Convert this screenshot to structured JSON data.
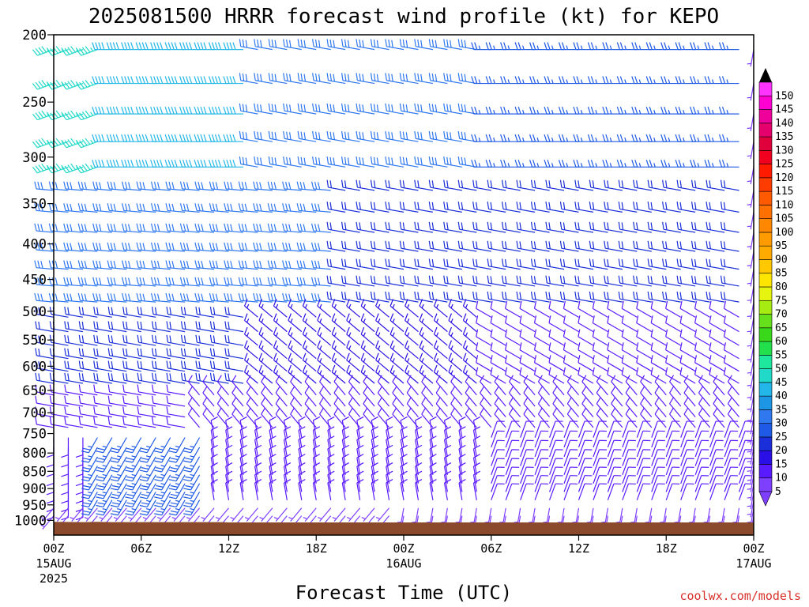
{
  "chart_data": {
    "type": "wind-barb-profile",
    "title": "2025081500 HRRR forecast wind profile (kt) for KEPO",
    "xlabel": "Forecast Time (UTC)",
    "credit": "coolwx.com/models",
    "pressure_levels": [
      200,
      250,
      300,
      350,
      400,
      450,
      500,
      550,
      600,
      650,
      700,
      750,
      800,
      850,
      900,
      950,
      1000
    ],
    "y_tick_labels": [
      "200",
      "250",
      "300",
      "350",
      "400",
      "450",
      "500",
      "550",
      "600",
      "650",
      "700",
      "750",
      "800",
      "850",
      "900",
      "950",
      "1000"
    ],
    "x_range_hours": [
      0,
      48
    ],
    "x_ticks": [
      {
        "hour": 0,
        "label": "00Z",
        "sub": "15AUG",
        "sub2": "2025"
      },
      {
        "hour": 6,
        "label": "06Z",
        "sub": "",
        "sub2": ""
      },
      {
        "hour": 12,
        "label": "12Z",
        "sub": "",
        "sub2": ""
      },
      {
        "hour": 18,
        "label": "18Z",
        "sub": "",
        "sub2": ""
      },
      {
        "hour": 24,
        "label": "00Z",
        "sub": "16AUG",
        "sub2": ""
      },
      {
        "hour": 30,
        "label": "06Z",
        "sub": "",
        "sub2": ""
      },
      {
        "hour": 36,
        "label": "12Z",
        "sub": "",
        "sub2": ""
      },
      {
        "hour": 42,
        "label": "18Z",
        "sub": "",
        "sub2": ""
      },
      {
        "hour": 48,
        "label": "00Z",
        "sub": "17AUG",
        "sub2": ""
      }
    ],
    "colorbar": {
      "ticks": [
        5,
        10,
        15,
        20,
        25,
        30,
        35,
        40,
        45,
        50,
        55,
        60,
        65,
        70,
        75,
        80,
        85,
        90,
        95,
        100,
        105,
        110,
        115,
        120,
        125,
        130,
        135,
        140,
        145,
        150
      ],
      "colors": [
        "#7f3fff",
        "#5a1aff",
        "#2a10e6",
        "#1a2fd9",
        "#1f5ae6",
        "#2f78f0",
        "#1e96e6",
        "#22b7e8",
        "#20d9c8",
        "#1ee89e",
        "#22e04c",
        "#3ad81a",
        "#66e01a",
        "#a6ec12",
        "#e6f50f",
        "#ffe600",
        "#ffc800",
        "#ffaa00",
        "#ff9a00",
        "#ff8800",
        "#ff7000",
        "#ff5a00",
        "#ff3c00",
        "#ff1a00",
        "#f0001e",
        "#e0003c",
        "#e6006e",
        "#f0009a",
        "#ff00d2",
        "#ff33ff"
      ]
    },
    "terrain_color": "#8b4a2b",
    "surface_pressure": [
      {
        "hour": 0,
        "p": 1005
      },
      {
        "hour": 2,
        "p": 1006
      },
      {
        "hour": 3,
        "p": 1005
      },
      {
        "hour": 4,
        "p": 1006
      },
      {
        "hour": 11.5,
        "p": 1006
      },
      {
        "hour": 12,
        "p": 1007
      },
      {
        "hour": 48,
        "p": 1007
      }
    ],
    "wind_regions": [
      {
        "pmin": 200,
        "pmax": 330,
        "hmin": 0,
        "hmax": 4,
        "speed": 45,
        "dir": 250
      },
      {
        "pmin": 200,
        "pmax": 330,
        "hmin": 4,
        "hmax": 14,
        "speed": 40,
        "dir": 270
      },
      {
        "pmin": 200,
        "pmax": 330,
        "hmin": 14,
        "hmax": 30,
        "speed": 30,
        "dir": 280
      },
      {
        "pmin": 200,
        "pmax": 330,
        "hmin": 30,
        "hmax": 48,
        "speed": 25,
        "dir": 270
      },
      {
        "pmin": 330,
        "pmax": 500,
        "hmin": 0,
        "hmax": 20,
        "speed": 30,
        "dir": 275
      },
      {
        "pmin": 330,
        "pmax": 500,
        "hmin": 20,
        "hmax": 48,
        "speed": 20,
        "dir": 280
      },
      {
        "pmin": 500,
        "pmax": 650,
        "hmin": 0,
        "hmax": 14,
        "speed": 20,
        "dir": 280
      },
      {
        "pmin": 500,
        "pmax": 650,
        "hmin": 14,
        "hmax": 30,
        "speed": 15,
        "dir": 310
      },
      {
        "pmin": 500,
        "pmax": 650,
        "hmin": 30,
        "hmax": 48,
        "speed": 10,
        "dir": 300
      },
      {
        "pmin": 650,
        "pmax": 760,
        "hmin": 0,
        "hmax": 10,
        "speed": 10,
        "dir": 280
      },
      {
        "pmin": 650,
        "pmax": 760,
        "hmin": 10,
        "hmax": 48,
        "speed": 10,
        "dir": 320
      },
      {
        "pmin": 760,
        "pmax": 960,
        "hmin": 0,
        "hmax": 3,
        "speed": 10,
        "dir": 180
      },
      {
        "pmin": 760,
        "pmax": 960,
        "hmin": 3,
        "hmax": 11,
        "speed": 25,
        "dir": 210
      },
      {
        "pmin": 760,
        "pmax": 960,
        "hmin": 11,
        "hmax": 30,
        "speed": 10,
        "dir": 350
      },
      {
        "pmin": 760,
        "pmax": 960,
        "hmin": 30,
        "hmax": 48,
        "speed": 10,
        "dir": 20
      },
      {
        "pmin": 960,
        "pmax": 1010,
        "hmin": 0,
        "hmax": 24,
        "speed": 5,
        "dir": 220
      },
      {
        "pmin": 960,
        "pmax": 1010,
        "hmin": 24,
        "hmax": 48,
        "speed": 5,
        "dir": 190
      }
    ]
  }
}
